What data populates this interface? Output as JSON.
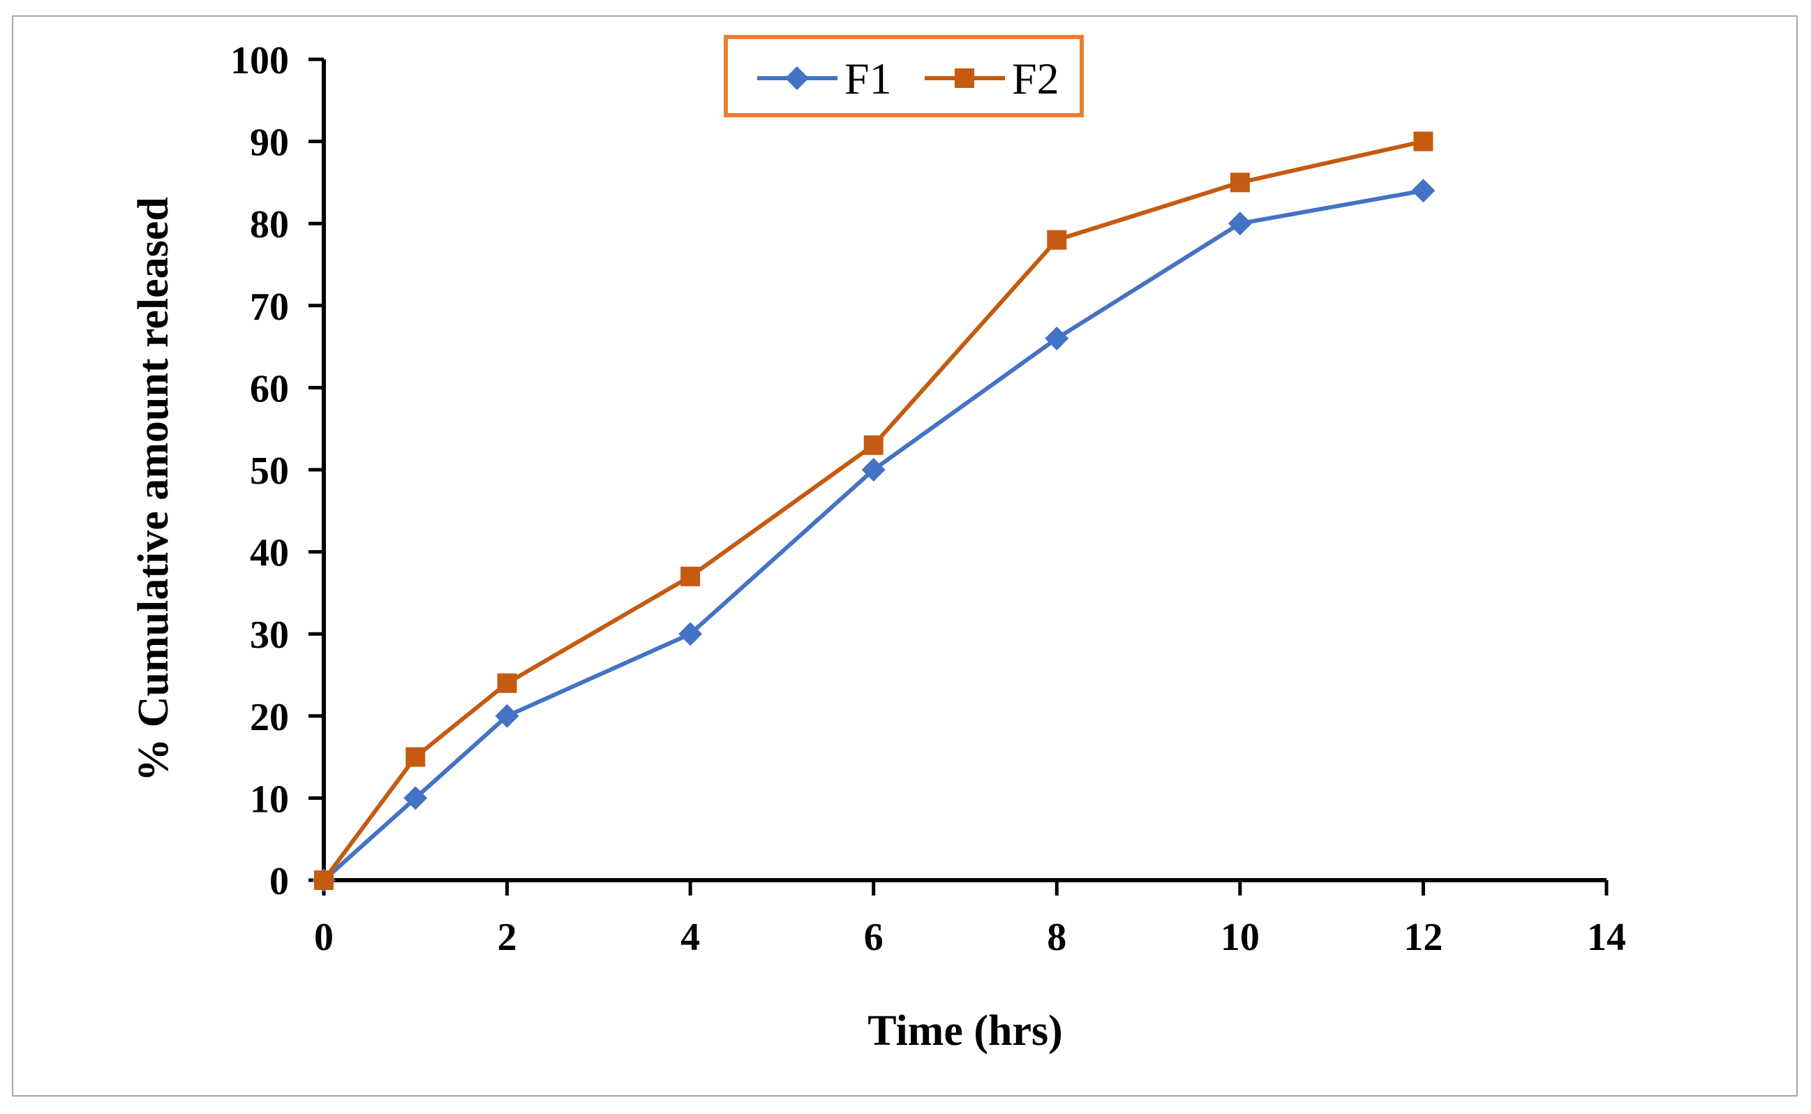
{
  "chart_data": {
    "type": "line",
    "title": "",
    "xlabel": "Time (hrs)",
    "ylabel": "% Cumulative amount released",
    "xlim": [
      0,
      14
    ],
    "ylim": [
      0,
      100
    ],
    "x_ticks": [
      0,
      2,
      4,
      6,
      8,
      10,
      12,
      14
    ],
    "y_ticks": [
      0,
      10,
      20,
      30,
      40,
      50,
      60,
      70,
      80,
      90,
      100
    ],
    "x_tick_labels": [
      "0",
      "2",
      "4",
      "6",
      "8",
      "10",
      "12",
      "14"
    ],
    "y_tick_labels": [
      "0",
      "10",
      "20",
      "30",
      "40",
      "50",
      "60",
      "70",
      "80",
      "90",
      "100"
    ],
    "grid": false,
    "legend_position": "top-center",
    "legend_border_color": "#ed7d31",
    "x": [
      0,
      1,
      2,
      4,
      6,
      8,
      10,
      12
    ],
    "series": [
      {
        "name": "F1",
        "color": "#4472c4",
        "marker": "diamond",
        "values": [
          0,
          10,
          20,
          30,
          50,
          66,
          80,
          84
        ]
      },
      {
        "name": "F2",
        "color": "#c55a11",
        "marker": "square",
        "values": [
          0,
          15,
          24,
          37,
          53,
          78,
          85,
          90
        ]
      }
    ]
  }
}
